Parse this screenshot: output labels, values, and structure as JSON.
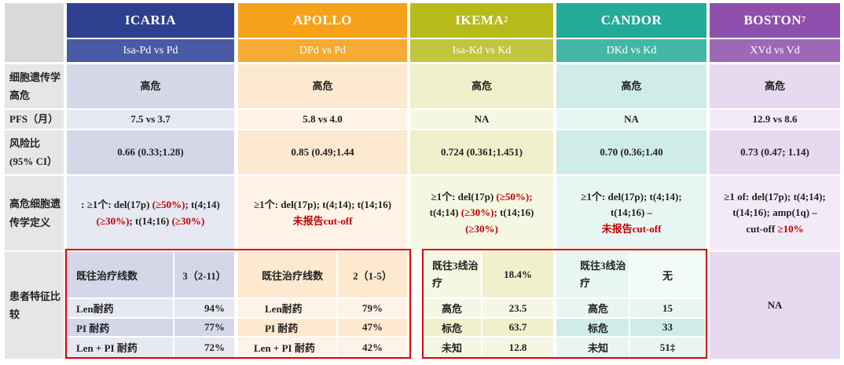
{
  "colors": {
    "icaria": "#2e3f8f",
    "apollo": "#f5a21a",
    "ikema": "#b6bb1a",
    "candor": "#23ab98",
    "boston": "#8f4fad",
    "highlight_red": "#c00000",
    "box_red": "#e00000"
  },
  "row_labels": {
    "genetics": "细胞遗传学高危",
    "pfs": "PFS（月）",
    "hr": "风险比 (95% CI）",
    "definition": "高危细胞遗传学定义",
    "patients": "患者特征比较"
  },
  "studies": [
    {
      "name": "ICARIA",
      "sup": "",
      "comparison": "Isa-Pd vs Pd",
      "genetics": "高危",
      "pfs": "7.5 vs 3.7",
      "hr": "0.66 (0.33;1.28)"
    },
    {
      "name": "APOLLO",
      "sup": "",
      "comparison": "DPd  vs Pd",
      "genetics": "高危",
      "pfs": "5.8 vs 4.0",
      "hr": "0.85 (0.49;1.44"
    },
    {
      "name": "IKEMA",
      "sup": "2",
      "comparison": "Isa-Kd vs Kd",
      "genetics": "高危",
      "pfs": "NA",
      "hr": "0.724 (0.361;1.451)"
    },
    {
      "name": "CANDOR",
      "sup": "",
      "comparison": "DKd vs Kd",
      "genetics": "高危",
      "pfs": "NA",
      "hr": "0.70 (0.36;1.40"
    },
    {
      "name": "BOSTON",
      "sup": "7",
      "comparison": "XVd vs Vd",
      "genetics": "高危",
      "pfs": "12.9 vs 8.6",
      "hr": "0.73 (0.47; 1.14)"
    }
  ],
  "definitions": {
    "icaria": {
      "a": ": ≥1个: del(17p) ",
      "a_red": "(≥50%)",
      "b": "; t(4;14)",
      "c_red": "(≥30%)",
      "d": "; t(14;16) ",
      "d_red": "(≥30%)"
    },
    "apollo": {
      "a": "≥1个: del(17p); t(4;14); t(14;16)",
      "b_red": "未报告cut-off"
    },
    "ikema": {
      "a": "≥1个: del(17p) ",
      "a_red": "(≥50%);",
      "b": "t(4;14) ",
      "b_red": "(≥30%)",
      "c": "; t(14;16)",
      "d_red": "(≥30%)"
    },
    "candor": {
      "a": "≥1个: del(17p); t(4;14);",
      "b": "t(14;16) –",
      "c_red": "未报告cut-off"
    },
    "boston": {
      "a": "≥1 of: del(17p); t(4;14);",
      "b": "t(14;16); amp(1q) –",
      "c": "cut-off ",
      "c_red": "≥10%"
    }
  },
  "patients": {
    "icaria": [
      {
        "label": "既往治疗线数",
        "value": "3（2-11）"
      },
      {
        "label": "Len耐药",
        "value": "94%"
      },
      {
        "label": "PI 耐药",
        "value": "77%"
      },
      {
        "label": "Len + PI 耐药",
        "value": "72%"
      }
    ],
    "apollo": [
      {
        "label": "既往治疗线数",
        "value": "2（1-5）"
      },
      {
        "label": "Len耐药",
        "value": "79%"
      },
      {
        "label": "PI 耐药",
        "value": "47%"
      },
      {
        "label": "Len + PI 耐药",
        "value": "42%"
      }
    ],
    "ikema": [
      {
        "label": "既往3线治疗",
        "value": "18.4%"
      },
      {
        "label": "高危",
        "value": "23.5"
      },
      {
        "label": "标危",
        "value": "63.7"
      },
      {
        "label": "未知",
        "value": "12.8"
      }
    ],
    "candor": [
      {
        "label": "既往3线治疗",
        "value": "无"
      },
      {
        "label": "高危",
        "value": "15"
      },
      {
        "label": "标危",
        "value": "33"
      },
      {
        "label": "未知",
        "value": "51‡"
      }
    ],
    "boston": "NA"
  }
}
